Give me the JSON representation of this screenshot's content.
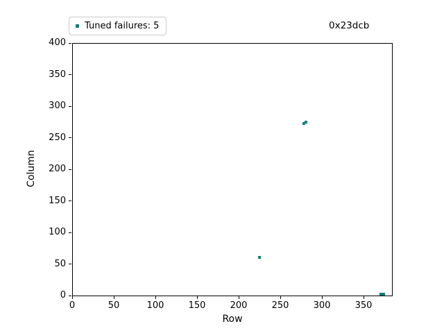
{
  "legend": {
    "label": "Tuned failures: 5",
    "marker_color": "#008080"
  },
  "annotation": "0x23dcb",
  "chart_data": {
    "type": "scatter",
    "title": "",
    "xlabel": "Row",
    "ylabel": "Column",
    "xlim": [
      0,
      385
    ],
    "ylim": [
      0,
      400
    ],
    "xticks": [
      0,
      50,
      100,
      150,
      200,
      250,
      300,
      350
    ],
    "yticks": [
      0,
      50,
      100,
      150,
      200,
      250,
      300,
      350,
      400
    ],
    "grid": false,
    "legend_position": "upper-left",
    "series": [
      {
        "name": "Tuned failures: 5",
        "marker": "square",
        "color": "#008080",
        "points": [
          [
            225,
            60
          ],
          [
            278,
            272
          ],
          [
            281,
            275
          ],
          [
            371,
            2
          ],
          [
            374,
            2
          ]
        ]
      }
    ]
  }
}
